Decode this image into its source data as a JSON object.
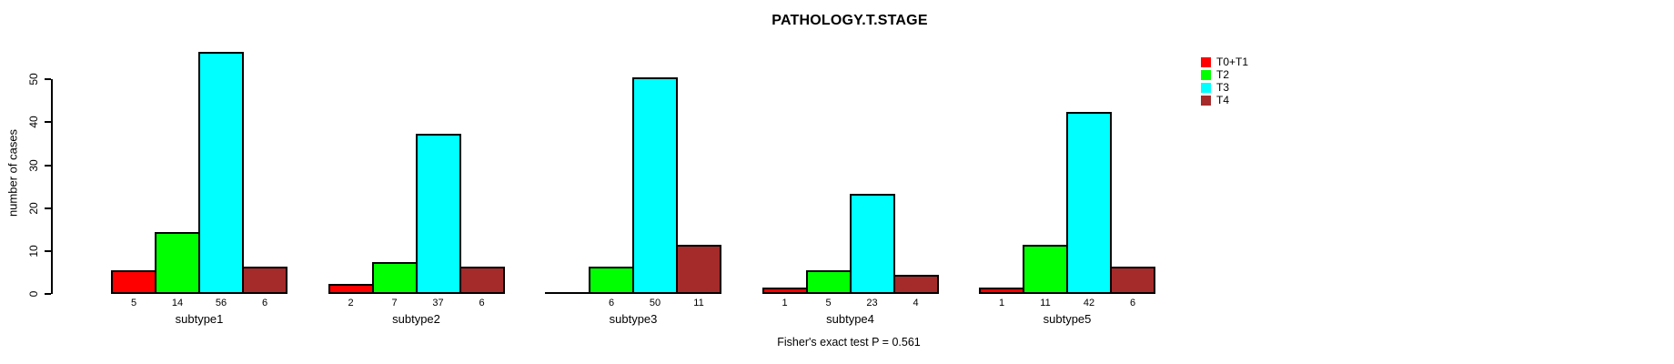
{
  "chart_data": {
    "type": "bar",
    "title": "PATHOLOGY.T.STAGE",
    "ylabel": "number of cases",
    "footnote": "Fisher's exact test P = 0.561",
    "categories": [
      "subtype1",
      "subtype2",
      "subtype3",
      "subtype4",
      "subtype5"
    ],
    "series": [
      {
        "name": "T0+T1",
        "color": "#FF0000",
        "values": [
          5,
          2,
          0,
          1,
          1
        ]
      },
      {
        "name": "T2",
        "color": "#00FF00",
        "values": [
          14,
          7,
          6,
          5,
          11
        ]
      },
      {
        "name": "T3",
        "color": "#00FFFF",
        "values": [
          56,
          37,
          50,
          23,
          42
        ]
      },
      {
        "name": "T4",
        "color": "#A52A2A",
        "values": [
          6,
          6,
          11,
          4,
          6
        ]
      }
    ],
    "ylim": [
      0,
      56
    ],
    "yticks": [
      0,
      10,
      20,
      30,
      40,
      50
    ],
    "grid": false,
    "legend_position": "top-right",
    "bar_value_labels": true,
    "hide_zero_value_labels": true,
    "axis_color": "#000000",
    "background_color": "#FFFFFF"
  }
}
